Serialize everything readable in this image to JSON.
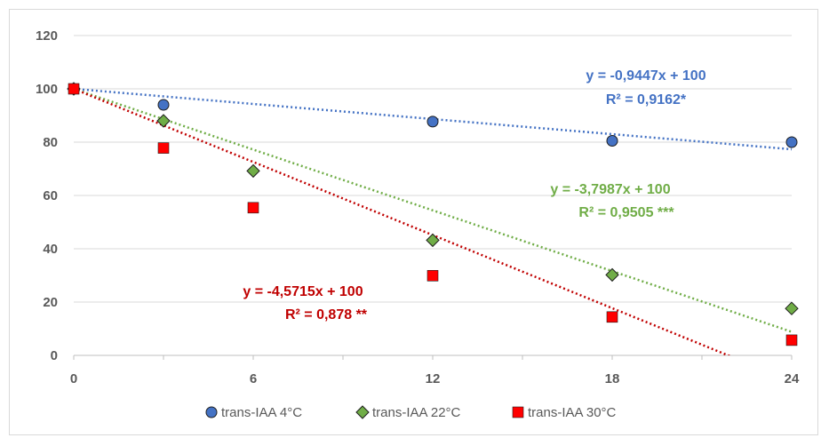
{
  "chart_data": {
    "type": "scatter",
    "x_ticks": [
      "0",
      "6",
      "12",
      "18",
      "24"
    ],
    "y_ticks": [
      "0",
      "20",
      "40",
      "60",
      "80",
      "100",
      "120"
    ],
    "xlim": [
      0,
      24
    ],
    "ylim": [
      0,
      120
    ],
    "grid": "horizontal",
    "legend_position": "bottom",
    "series": [
      {
        "name": "trans-IAA 4°C",
        "marker": "circle",
        "color": "#4472c4",
        "trend_color": "#4472c4",
        "x": [
          0,
          3,
          12,
          18,
          24
        ],
        "y": [
          100,
          94,
          87.7,
          80.5,
          80
        ],
        "trendline": {
          "slope": -0.9447,
          "intercept": 100
        },
        "equation": "y = -0,9447x + 100",
        "r2": "R² = 0,9162*"
      },
      {
        "name": "trans-IAA 22°C",
        "marker": "diamond",
        "color": "#70ad47",
        "trend_color": "#70ad47",
        "x": [
          0,
          3,
          6,
          12,
          18,
          24
        ],
        "y": [
          100,
          88,
          69.2,
          43.2,
          30.2,
          17.6
        ],
        "trendline": {
          "slope": -3.7987,
          "intercept": 100
        },
        "equation": "y = -3,7987x + 100",
        "r2": "R² = 0,9505 ***"
      },
      {
        "name": "trans-IAA  30°C",
        "marker": "square",
        "color": "#ff0000",
        "trend_color": "#c00000",
        "x": [
          0,
          3,
          6,
          12,
          18,
          24
        ],
        "y": [
          100,
          77.8,
          55.4,
          29.9,
          14.4,
          5.7
        ],
        "trendline": {
          "slope": -4.5715,
          "intercept": 100
        },
        "equation": "y = -4,5715x + 100",
        "r2": "R² = 0,878 **"
      }
    ]
  }
}
